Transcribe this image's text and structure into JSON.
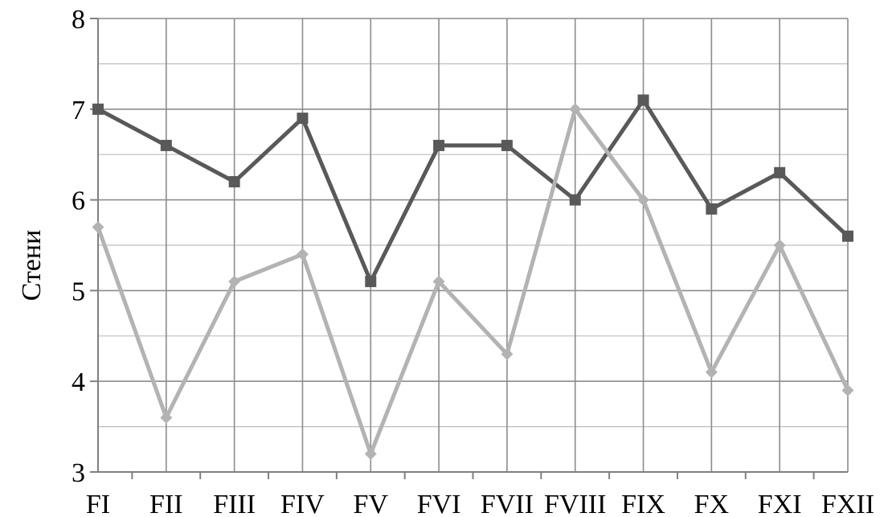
{
  "chart_data": {
    "type": "line",
    "title": "",
    "xlabel": "",
    "ylabel": "Стени",
    "categories": [
      "FI",
      "FII",
      "FIII",
      "FIV",
      "FV",
      "FVI",
      "FVII",
      "FVIII",
      "FIX",
      "FX",
      "FXI",
      "FXII"
    ],
    "ylim": [
      3,
      8
    ],
    "yticks": [
      3,
      4,
      5,
      6,
      7,
      8
    ],
    "grid": true,
    "minor_grid": true,
    "series": [
      {
        "marker": "square",
        "color": "#595959",
        "values": [
          7.0,
          6.6,
          6.2,
          6.9,
          5.1,
          6.6,
          6.6,
          6.0,
          7.1,
          5.9,
          6.3,
          5.6
        ]
      },
      {
        "marker": "diamond",
        "color": "#b3b3b3",
        "values": [
          5.7,
          3.6,
          5.1,
          5.4,
          3.2,
          5.1,
          4.3,
          7.0,
          6.0,
          4.1,
          5.5,
          3.9
        ]
      }
    ]
  }
}
